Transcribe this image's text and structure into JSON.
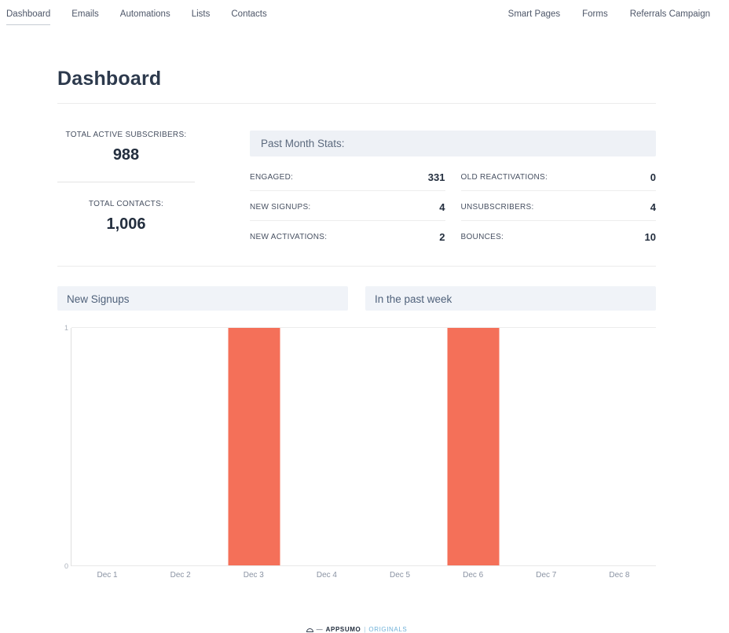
{
  "nav": {
    "left_items": [
      {
        "label": "Dashboard",
        "active": true
      },
      {
        "label": "Emails",
        "active": false
      },
      {
        "label": "Automations",
        "active": false
      },
      {
        "label": "Lists",
        "active": false
      },
      {
        "label": "Contacts",
        "active": false
      }
    ],
    "right_items": [
      {
        "label": "Smart Pages",
        "active": false
      },
      {
        "label": "Forms",
        "active": false
      },
      {
        "label": "Referrals Campaign",
        "active": false
      }
    ]
  },
  "page": {
    "title": "Dashboard"
  },
  "summary": {
    "total_active_subscribers_label": "TOTAL ACTIVE SUBSCRIBERS:",
    "total_active_subscribers_value": "988",
    "total_contacts_label": "TOTAL CONTACTS:",
    "total_contacts_value": "1,006"
  },
  "past_month": {
    "header": "Past Month Stats:",
    "stats": [
      {
        "label": "ENGAGED:",
        "value": "331"
      },
      {
        "label": "NEW SIGNUPS:",
        "value": "4"
      },
      {
        "label": "NEW ACTIVATIONS:",
        "value": "2"
      },
      {
        "label": "OLD REACTIVATIONS:",
        "value": "0"
      },
      {
        "label": "UNSUBSCRIBERS:",
        "value": "4"
      },
      {
        "label": "BOUNCES:",
        "value": "10"
      }
    ]
  },
  "chart_section": {
    "title": "New Signups",
    "subtitle": "In the past week"
  },
  "chart_data": {
    "type": "bar",
    "title": "New Signups",
    "subtitle": "In the past week",
    "categories": [
      "Dec 1",
      "Dec 2",
      "Dec 3",
      "Dec 4",
      "Dec 5",
      "Dec 6",
      "Dec 7",
      "Dec 8"
    ],
    "values": [
      0,
      0,
      1,
      0,
      0,
      1,
      0,
      0
    ],
    "ylim": [
      0,
      1
    ],
    "yticks": [
      0,
      1
    ],
    "bar_color": "#f47059",
    "grid": "top-line-only",
    "legend": "none",
    "xlabel": "",
    "ylabel": ""
  },
  "footer": {
    "dash": "—",
    "brand": "APPSUMO",
    "pipe": "|",
    "suffix": "ORIGINALS"
  },
  "colors": {
    "bar": "#f47059",
    "panel_bg": "#eef1f6",
    "chart_header_bg": "#f0f3f8",
    "accent_text": "#50627b",
    "dark_text": "#232e3e",
    "footer_accent": "#6fb1d8"
  }
}
